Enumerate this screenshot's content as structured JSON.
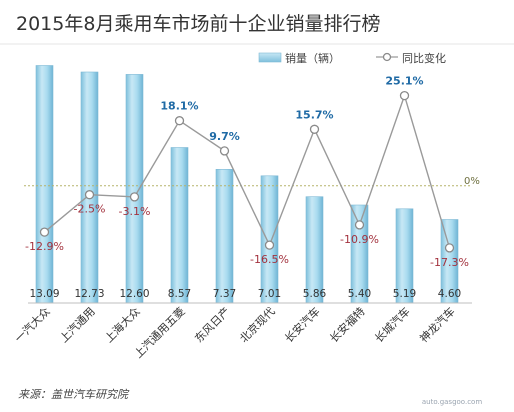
{
  "chart_data": {
    "type": "bar",
    "title": "2015年8月乘用车市场前十企业销量排行榜",
    "categories": [
      "一汽大众",
      "上汽通用",
      "上海大众",
      "上汽通用五菱",
      "东风日产",
      "北京现代",
      "长安汽车",
      "长安福特",
      "长城汽车",
      "神龙汽车"
    ],
    "series": [
      {
        "name": "销量（辆）",
        "kind": "bar",
        "axis": "left",
        "values": [
          13.09,
          12.73,
          12.6,
          8.57,
          7.37,
          7.01,
          5.86,
          5.4,
          5.19,
          4.6
        ],
        "labels": [
          "13.09",
          "12.73",
          "12.60",
          "8.57",
          "7.37",
          "7.01",
          "5.86",
          "5.40",
          "5.19",
          "4.60"
        ],
        "color": "#9dd3ea"
      },
      {
        "name": "同比变化",
        "kind": "line",
        "axis": "right",
        "values": [
          -12.9,
          -2.5,
          -3.1,
          18.1,
          9.7,
          -16.5,
          15.7,
          -10.9,
          25.1,
          -17.3
        ],
        "labels": [
          "-12.9%",
          "-2.5%",
          "-3.1%",
          "18.1%",
          "9.7%",
          "-16.5%",
          "15.7%",
          "-10.9%",
          "25.1%",
          "-17.3%"
        ],
        "color": "#9a9a9a"
      }
    ],
    "ylim_left": [
      0,
      14
    ],
    "ylim_right": [
      -24,
      35
    ],
    "reference_line": {
      "value": 0,
      "label": "0%"
    },
    "legend_position": "top-right",
    "grid": false,
    "source": "来源：盖世汽车研究院",
    "colors": {
      "positive_label": "#1f6aa5",
      "negative_label": "#a3323e",
      "reference": "#b5b36a",
      "bar_stroke": "#7fb9d5"
    }
  },
  "watermark": "auto.gasgoo.com"
}
